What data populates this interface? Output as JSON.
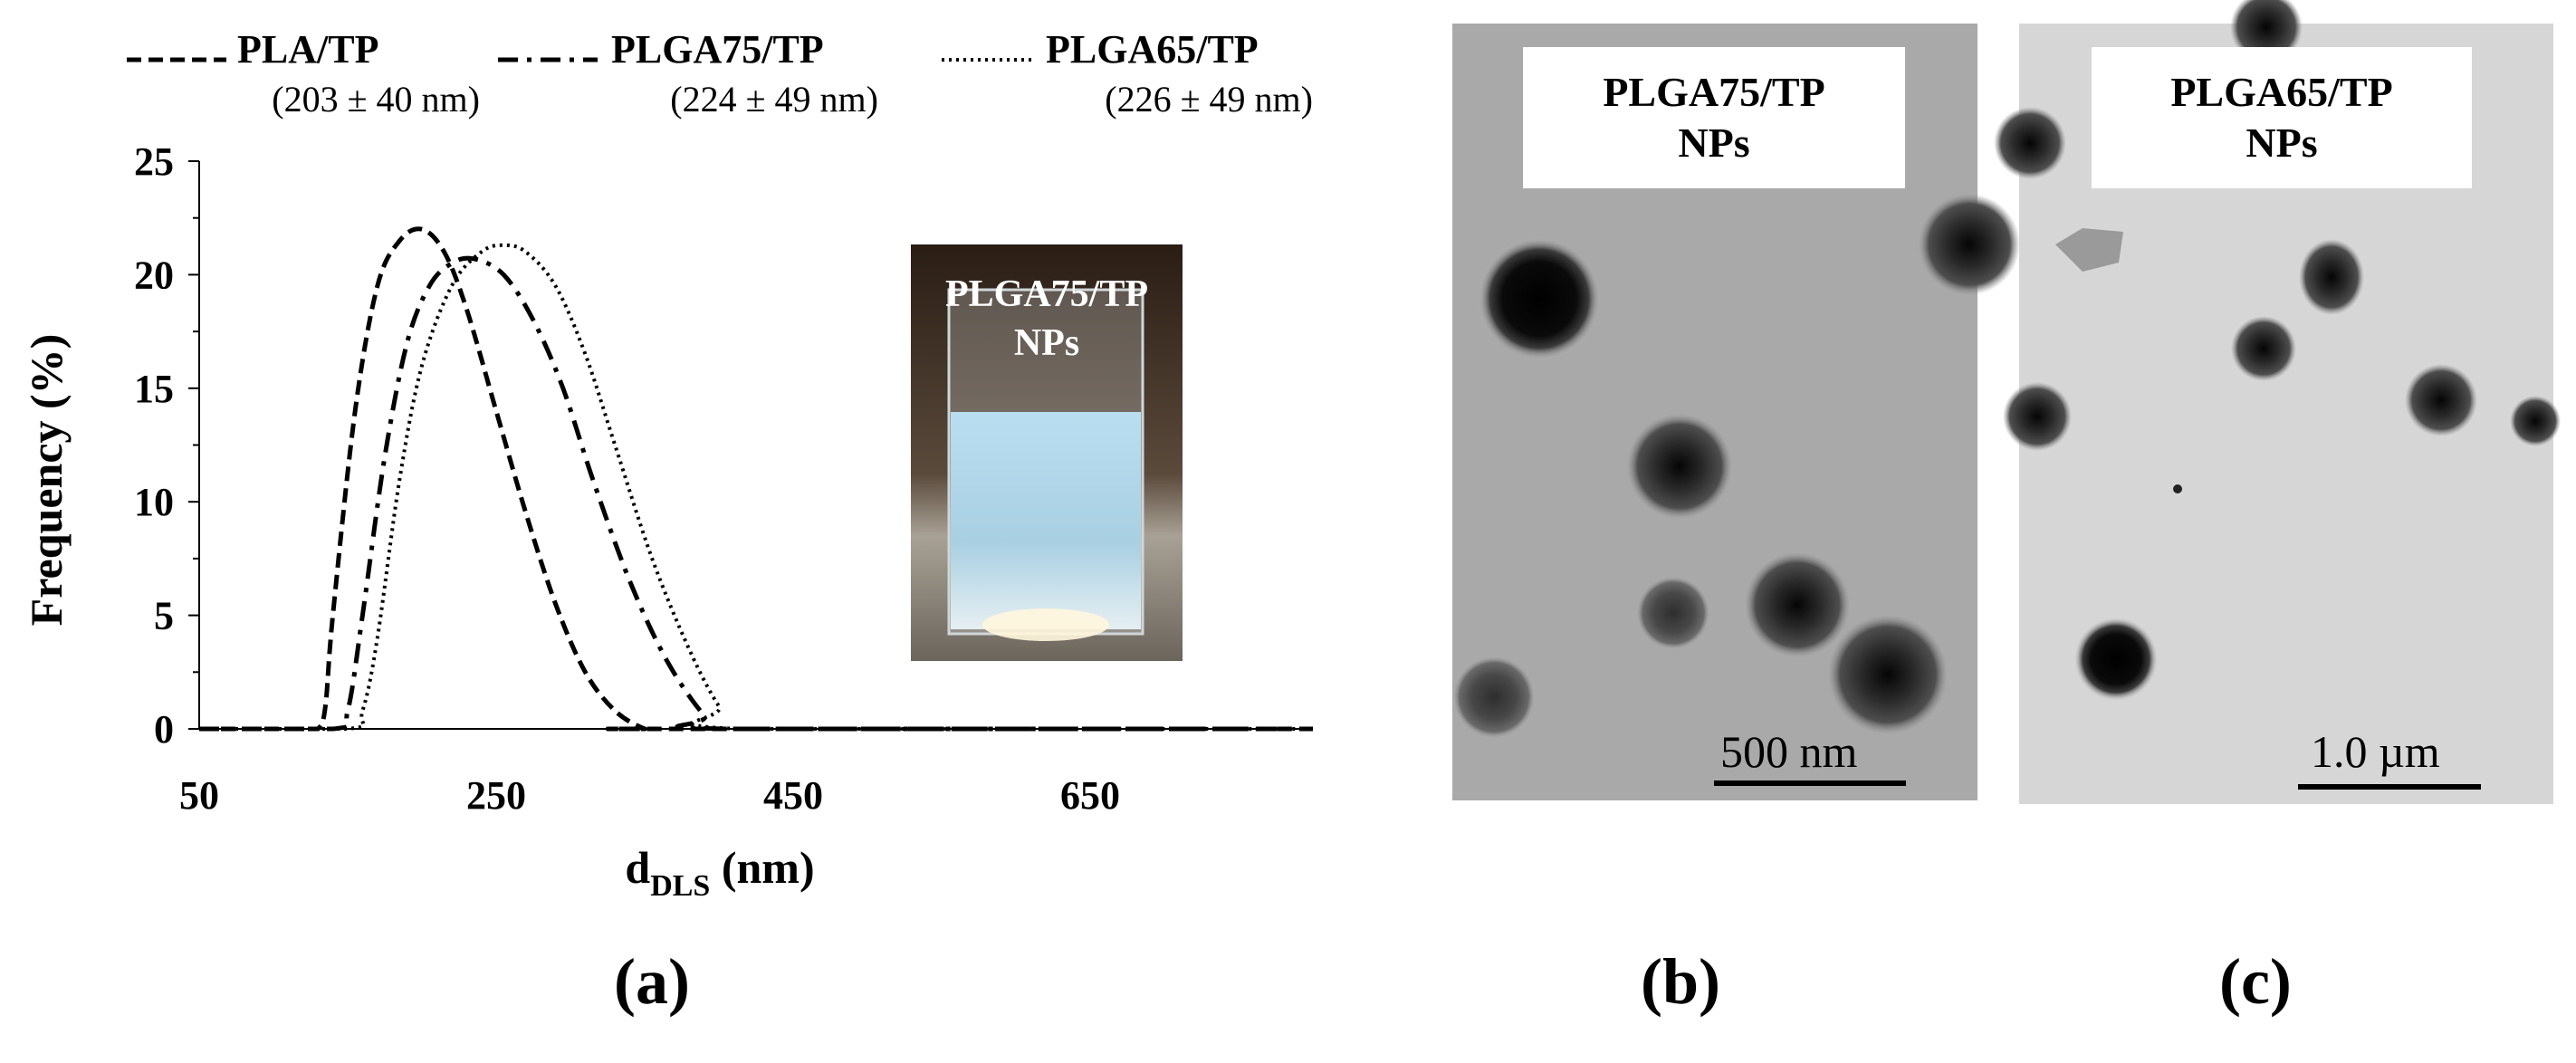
{
  "panel_labels": {
    "a": "(a)",
    "b": "(b)",
    "c": "(c)"
  },
  "legend": [
    {
      "name": "PLA/TP",
      "stat": "(203 ± 40 nm)",
      "style": "dashed"
    },
    {
      "name": "PLGA75/TP",
      "stat": "(224 ± 49 nm)",
      "style": "dash-dot"
    },
    {
      "name": "PLGA65/TP",
      "stat": "(226 ± 49 nm)",
      "style": "dotted"
    }
  ],
  "inset_photo": {
    "line1": "PLGA75/TP",
    "line2": "NPs",
    "liquid_color": "#a9d3ea"
  },
  "tem_b": {
    "line1": "PLGA75/TP",
    "line2": "NPs",
    "scale_label": "500 nm"
  },
  "tem_c": {
    "line1": "PLGA65/TP",
    "line2": "NPs",
    "scale_label": "1.0 µm"
  },
  "chart_data": {
    "type": "line",
    "title": "",
    "xlabel_main": "d",
    "xlabel_sub": "DLS",
    "xlabel_unit": " (nm)",
    "ylabel": "Frequency (%)",
    "xlim": [
      50,
      800
    ],
    "ylim": [
      0,
      25
    ],
    "xticks": [
      50,
      250,
      450,
      650
    ],
    "yticks": [
      0,
      5,
      10,
      15,
      20,
      25
    ],
    "series": [
      {
        "name": "PLA/TP",
        "style": "dashed",
        "x": [
          50,
          120,
          130,
          135,
          140,
          155,
          170,
          185,
          200,
          215,
          230,
          250,
          270,
          290,
          310,
          330,
          350,
          360,
          800
        ],
        "y": [
          0,
          0,
          0,
          1,
          5,
          14,
          19.5,
          21.5,
          22,
          21,
          18.5,
          14,
          9.5,
          5.5,
          2.5,
          0.8,
          0,
          0,
          0
        ]
      },
      {
        "name": "PLGA75/TP",
        "style": "dash-dot",
        "x": [
          50,
          140,
          150,
          160,
          175,
          190,
          205,
          220,
          235,
          255,
          275,
          295,
          315,
          340,
          365,
          390,
          405,
          800
        ],
        "y": [
          0,
          0,
          0.8,
          5,
          12,
          17,
          19.5,
          20.5,
          20.7,
          20,
          18,
          15,
          11,
          6.5,
          3,
          0.6,
          0,
          0
        ]
      },
      {
        "name": "PLGA65/TP",
        "style": "dotted",
        "x": [
          50,
          150,
          160,
          170,
          185,
          200,
          220,
          240,
          255,
          270,
          290,
          310,
          330,
          355,
          380,
          400,
          415,
          800
        ],
        "y": [
          0,
          0,
          0.8,
          4,
          11,
          16,
          19.5,
          21,
          21.3,
          21,
          19.5,
          16.5,
          12.5,
          7.5,
          3.5,
          1,
          0,
          0
        ]
      }
    ]
  }
}
